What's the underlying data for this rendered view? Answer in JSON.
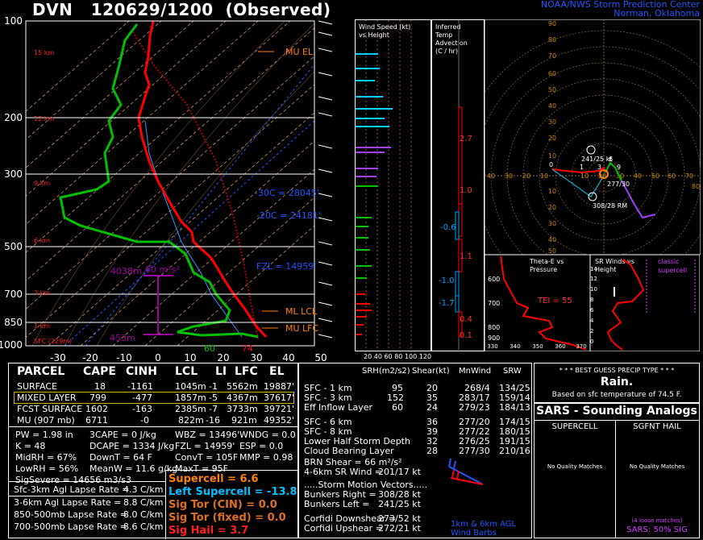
{
  "header": {
    "station": "DVN",
    "datetime": "120629/1200",
    "kind": "(Observed)",
    "org_line1": "NOAA/NWS Storm Prediction Center",
    "org_line2": "Norman, Oklahoma"
  },
  "skewt": {
    "pressure_levels": [
      "100",
      "200",
      "300",
      "500",
      "700",
      "850",
      "1000"
    ],
    "height_labels": [
      "15 km",
      "12 km",
      "9 km",
      "6 km",
      "3 km",
      "1 km",
      "SFC (229m)"
    ],
    "temp_ticks": [
      "-30",
      "-20",
      "-10",
      "0",
      "10",
      "20",
      "30",
      "40",
      "50"
    ],
    "annotations": {
      "mu_el": "MU EL",
      "ml_lcl": "ML LCL",
      "mu_lfc": "MU LFC",
      "m30": "-30C = 28045'",
      "m20": "-20C = 24181'",
      "fzl": "FZL = 14959'",
      "cape_top": "4038m",
      "cape_val": "60 m²s²",
      "cape_bot": "453m",
      "sfc_dew": "60",
      "sfc_temp": "74"
    }
  },
  "wind_speed_panel": {
    "title_line1": "Wind Speed (kt)",
    "title_line2": "vs Height",
    "ticks": [
      "20",
      "40",
      "60",
      "80",
      "100",
      "120"
    ]
  },
  "temp_advection_panel": {
    "title_line1": "Inferred",
    "title_line2": "Temp Advection",
    "title_line3": "(C / hr)",
    "values": [
      "2.7",
      "1.0",
      "-0.6",
      "1.1",
      "-1.0",
      "-1.7",
      "0.4",
      "0.1"
    ]
  },
  "hodograph": {
    "axis_labels": [
      "40",
      "30",
      "20",
      "10",
      "10",
      "20",
      "30",
      "40",
      "50",
      "60",
      "70",
      "80"
    ],
    "ring_labels": [
      "90",
      "80",
      "70",
      "60",
      "50",
      "40",
      "30",
      "20",
      "10",
      "10",
      "20",
      "30",
      "40",
      "50"
    ],
    "motion_label": "241/25 kt",
    "mean_label": "277/30",
    "rm_label": "308/28 RM",
    "points": [
      "0",
      "1",
      "3",
      "6",
      "9"
    ]
  },
  "theta_panel": {
    "title_line1": "Theta-E vs",
    "title_line2": "Pressure",
    "tei": "TEI = 55",
    "p_ticks": [
      "600",
      "700",
      "800",
      "900"
    ],
    "t_ticks": [
      "330",
      "340",
      "350",
      "360",
      "370"
    ]
  },
  "sr_winds_panel": {
    "title_line1": "SR Winds vs",
    "title_line2": "Height",
    "h_ticks": [
      "14",
      "12",
      "10",
      "8",
      "6",
      "4",
      "2",
      "0"
    ],
    "classic": "classic",
    "supercell": "supercell"
  },
  "parcel_table": {
    "headers": [
      "PARCEL",
      "CAPE",
      "CINH",
      "LCL",
      "LI",
      "LFC",
      "EL"
    ],
    "rows": [
      [
        "SURFACE",
        "18",
        "-1161",
        "1045m",
        "-1",
        "5562m",
        "19887'"
      ],
      [
        "MIXED LAYER",
        "799",
        "-477",
        "1857m",
        "-5",
        "4367m",
        "37617'"
      ],
      [
        "FCST SURFACE",
        "1602",
        "-163",
        "2385m",
        "-7",
        "3733m",
        "39721'"
      ],
      [
        "MU  (907 mb)",
        "6711",
        "-0",
        "822m",
        "-16",
        "921m",
        "49352'"
      ]
    ]
  },
  "indices": {
    "col1": [
      "PW = 1.98 in",
      "K = 48",
      "MidRH = 67%",
      "LowRH = 56%",
      "SigSevere = 14656 m3/s3"
    ],
    "col2": [
      "3CAPE = 0 J/kg",
      "DCAPE = 1334 J/kg",
      "DownT = 64 F",
      "MeanW = 11.6 g/kg"
    ],
    "col3": [
      "WBZ = 13496'",
      "FZL = 14959'",
      "ConvT = 105F",
      "MaxT = 95F"
    ],
    "col4": [
      "WNDG = 0.0",
      "ESP = 0.0",
      "MMP = 0.98"
    ]
  },
  "lapse_rates": [
    [
      "Sfc-3km Agl Lapse Rate =",
      "4.3 C/km"
    ],
    [
      "3-6km Agl Lapse Rate =",
      "8.8 C/km"
    ],
    [
      "850-500mb Lapse Rate =",
      "8.0 C/km"
    ],
    [
      "700-500mb Lapse Rate =",
      "8.6 C/km"
    ]
  ],
  "params": {
    "supercell": "Supercell = 6.6",
    "left_supercell": "Left Supercell = -13.8",
    "sig_tor_cin": "Sig Tor (CIN) = 0.0",
    "sig_tor_fixed": "Sig Tor (fixed) = 0.0",
    "sig_hail": "Sig Hail = 3.7"
  },
  "shear_table": {
    "headers": [
      "SRH(m2/s2)",
      "Shear(kt)",
      "MnWind",
      "SRW"
    ],
    "rows": [
      [
        "SFC - 1 km",
        "95",
        "20",
        "268/4",
        "134/25"
      ],
      [
        "SFC - 3 km",
        "152",
        "35",
        "283/17",
        "159/14"
      ],
      [
        "Eff Inflow Layer",
        "60",
        "24",
        "279/23",
        "184/13"
      ],
      [
        "SFC - 6 km",
        "",
        "36",
        "277/20",
        "174/15"
      ],
      [
        "SFC - 8 km",
        "",
        "39",
        "277/22",
        "180/15"
      ],
      [
        "Lower Half Storm Depth",
        "",
        "32",
        "276/25",
        "191/15"
      ],
      [
        "Cloud Bearing Layer",
        "",
        "28",
        "277/30",
        "210/16"
      ]
    ],
    "brn": "BRN Shear = 66 m²/s²",
    "srw": [
      "4-6km SR Wind =",
      "201/17 kt"
    ],
    "motion_title": ".....Storm Motion Vectors.....",
    "bunkers_right": [
      "Bunkers Right =",
      "308/28 kt"
    ],
    "bunkers_left": [
      "Bunkers Left =",
      "241/25 kt"
    ],
    "corfidi_down": [
      "Corfidi Downshear =",
      "273/52 kt"
    ],
    "corfidi_up": [
      "Corfidi Upshear =",
      "272/21 kt"
    ],
    "barb_label1": "1km & 6km AGL",
    "barb_label2": "Wind Barbs"
  },
  "precip": {
    "title": "* * * BEST GUESS PRECIP TYPE * * *",
    "type": "Rain.",
    "basis": "Based on sfc temperature of 74.5 F."
  },
  "sars": {
    "title": "SARS - Sounding Analogs",
    "col1": "SUPERCELL",
    "col2": "SGFNT HAIL",
    "nm1": "No Quality Matches",
    "nm2": "No Quality Matches",
    "loose": "(4 loose matches)",
    "summary": "SARS:  50% SIG"
  },
  "colors": {
    "temp": "#ff0000",
    "dew": "#00c000",
    "parcel": "#b00000",
    "isotherm": "#ffcc99",
    "wind": "#00d0ff",
    "purple": "#a040ff",
    "orange": "#ff8000",
    "accent_blue": "#2255ff"
  }
}
